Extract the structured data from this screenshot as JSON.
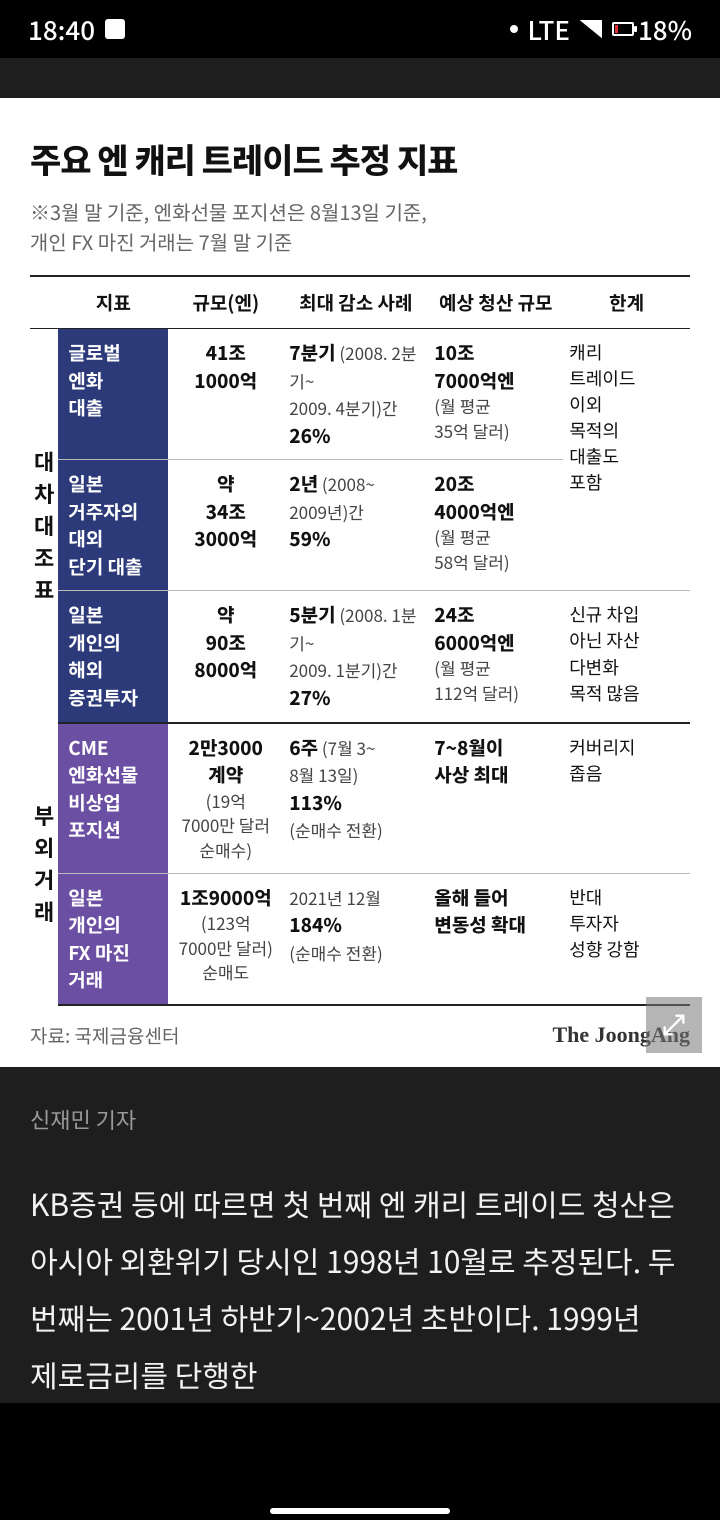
{
  "status": {
    "time": "18:40",
    "net": "LTE",
    "battery": "18%"
  },
  "card": {
    "title": "주요 엔 캐리 트레이드 추정 지표",
    "subtitle": "※3월 말 기준, 엔화선물 포지션은 8월13일 기준,\n   개인 FX 마진 거래는 7월 말 기준",
    "source_label": "자료: 국제금융센터",
    "brand": "The JoongAng"
  },
  "table": {
    "columns": [
      "지표",
      "규모(엔)",
      "최대 감소 사례",
      "예상 청산 규모",
      "한계"
    ],
    "groups": [
      {
        "vlabel": "대차대조표",
        "color": "navy",
        "rows": [
          {
            "cat": "글로벌\n엔화\n대출",
            "size_bold": "41조\n1000억",
            "size_sub": "",
            "dec_bold": "7분기",
            "dec_sub": "(2008. 2분기~\n2009. 4분기)간",
            "dec_pct": "26%",
            "liq_bold": "10조\n7000억엔",
            "liq_sub": "(월 평균\n35억 달러)",
            "limit": "캐리\n트레이드\n이외\n목적의\n대출도\n포함",
            "limit_rowspan": 2
          },
          {
            "cat": "일본\n거주자의\n대외\n단기 대출",
            "size_bold": "약\n34조\n3000억",
            "size_sub": "",
            "dec_bold": "2년",
            "dec_sub": "(2008~\n2009년)간",
            "dec_pct": "59%",
            "liq_bold": "20조\n4000억엔",
            "liq_sub": "(월 평균\n58억 달러)",
            "limit": ""
          },
          {
            "cat": "일본\n개인의\n해외\n증권투자",
            "size_bold": "약\n90조\n8000억",
            "size_sub": "",
            "dec_bold": "5분기",
            "dec_sub": "(2008. 1분기~\n2009. 1분기)간",
            "dec_pct": "27%",
            "liq_bold": "24조\n6000억엔",
            "liq_sub": "(월 평균\n112억 달러)",
            "limit": "신규 차입\n아닌 자산\n다변화\n목적 많음",
            "limit_rowspan": 1
          }
        ]
      },
      {
        "vlabel": "부외거래",
        "color": "purple",
        "rows": [
          {
            "cat": "CME\n엔화선물\n비상업\n포지션",
            "size_bold": "2만3000\n계약",
            "size_sub": "(19억\n7000만 달러\n순매수)",
            "dec_bold": "6주",
            "dec_sub": "(7월 3~\n8월 13일)",
            "dec_pct": "113%",
            "dec_extra": "(순매수 전환)",
            "liq_bold": "7~8월이\n사상 최대",
            "liq_sub": "",
            "limit": "커버리지\n좁음",
            "limit_rowspan": 1
          },
          {
            "cat": "일본\n개인의\nFX 마진\n거래",
            "size_bold": "1조9000억",
            "size_sub": "(123억\n7000만 달러)\n순매도",
            "dec_bold": "",
            "dec_sub": "2021년 12월",
            "dec_pct": "184%",
            "dec_extra": "(순매수 전환)",
            "liq_bold": "올해 들어\n변동성 확대",
            "liq_sub": "",
            "limit": "반대\n투자자\n성향 강함",
            "limit_rowspan": 1
          }
        ]
      }
    ]
  },
  "article": {
    "byline": "신재민 기자",
    "body": "KB증권 등에 따르면 첫 번째 엔 캐리 트레이드 청산은 아시아 외환위기 당시인 1998년 10월로 추정된다. 두 번째는 2001년 하반기~2002년 초반이다.  1999년 제로금리를 단행한"
  }
}
